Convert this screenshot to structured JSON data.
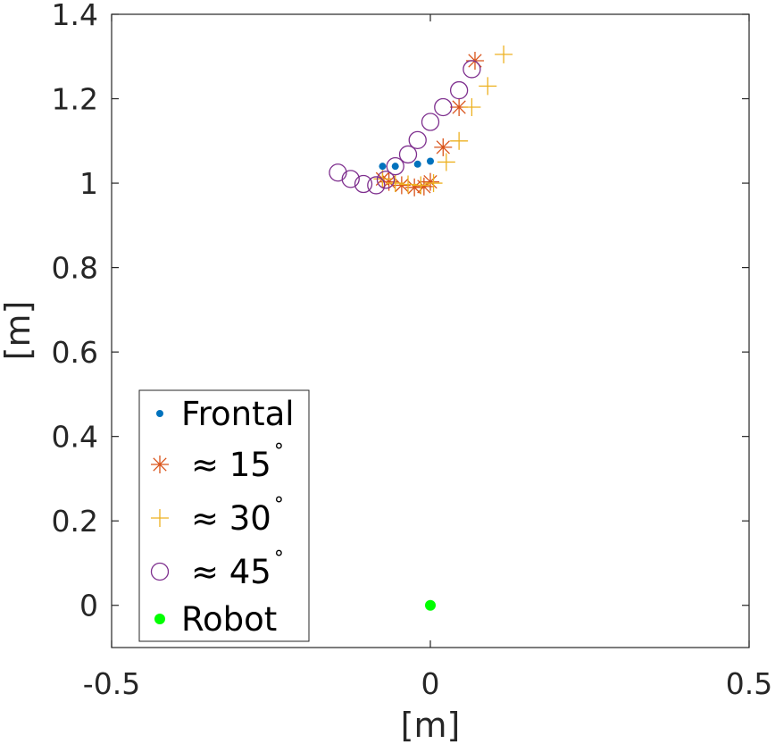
{
  "chart_data": {
    "type": "scatter",
    "title": "",
    "xlabel": "[m]",
    "ylabel": "[m]",
    "xlim": [
      -0.5,
      0.5
    ],
    "ylim": [
      -0.1,
      1.4
    ],
    "xticks": [
      -0.5,
      0,
      0.5
    ],
    "xtick_labels": [
      "-0.5",
      "0",
      "0.5"
    ],
    "yticks": [
      0,
      0.2,
      0.4,
      0.6,
      0.8,
      1,
      1.2,
      1.4
    ],
    "ytick_labels": [
      "0",
      "0.2",
      "0.4",
      "0.6",
      "0.8",
      "1",
      "1.2",
      "1.4"
    ],
    "grid": false,
    "legend_position": "bottom-left",
    "series": [
      {
        "name": "Frontal",
        "marker": "dot",
        "color": "#0072BD",
        "points": [
          {
            "x": -0.075,
            "y": 1.04
          },
          {
            "x": -0.055,
            "y": 1.04
          },
          {
            "x": -0.02,
            "y": 1.045
          },
          {
            "x": 0.0,
            "y": 1.052
          }
        ]
      },
      {
        "name": "≈ 15",
        "name_superscript": "°",
        "marker": "asterisk",
        "color": "#D95319",
        "points": [
          {
            "x": -0.075,
            "y": 1.01
          },
          {
            "x": -0.065,
            "y": 1.003
          },
          {
            "x": -0.045,
            "y": 0.995
          },
          {
            "x": -0.025,
            "y": 0.99
          },
          {
            "x": -0.01,
            "y": 0.992
          },
          {
            "x": 0.0,
            "y": 1.003
          },
          {
            "x": 0.02,
            "y": 1.085
          },
          {
            "x": 0.045,
            "y": 1.18
          },
          {
            "x": 0.07,
            "y": 1.29
          }
        ]
      },
      {
        "name": "≈ 30",
        "name_superscript": "°",
        "marker": "plus",
        "color": "#EDB120",
        "points": [
          {
            "x": -0.075,
            "y": 1.01
          },
          {
            "x": -0.055,
            "y": 1.0
          },
          {
            "x": -0.035,
            "y": 0.997
          },
          {
            "x": -0.015,
            "y": 0.995
          },
          {
            "x": 0.005,
            "y": 1.0
          },
          {
            "x": 0.025,
            "y": 1.05
          },
          {
            "x": 0.045,
            "y": 1.1
          },
          {
            "x": 0.065,
            "y": 1.18
          },
          {
            "x": 0.09,
            "y": 1.23
          },
          {
            "x": 0.115,
            "y": 1.305
          }
        ]
      },
      {
        "name": "≈ 45",
        "name_superscript": "°",
        "marker": "circle",
        "color": "#7E2F8E",
        "points": [
          {
            "x": -0.145,
            "y": 1.025
          },
          {
            "x": -0.125,
            "y": 1.01
          },
          {
            "x": -0.105,
            "y": 0.998
          },
          {
            "x": -0.085,
            "y": 0.995
          },
          {
            "x": -0.07,
            "y": 1.008
          },
          {
            "x": -0.055,
            "y": 1.04
          },
          {
            "x": -0.035,
            "y": 1.068
          },
          {
            "x": -0.02,
            "y": 1.102
          },
          {
            "x": 0.0,
            "y": 1.145
          },
          {
            "x": 0.02,
            "y": 1.18
          },
          {
            "x": 0.045,
            "y": 1.22
          },
          {
            "x": 0.065,
            "y": 1.27
          }
        ]
      },
      {
        "name": "Robot",
        "marker": "filled-circle",
        "color": "#00FF00",
        "points": [
          {
            "x": 0.0,
            "y": 0.0
          }
        ]
      }
    ]
  }
}
